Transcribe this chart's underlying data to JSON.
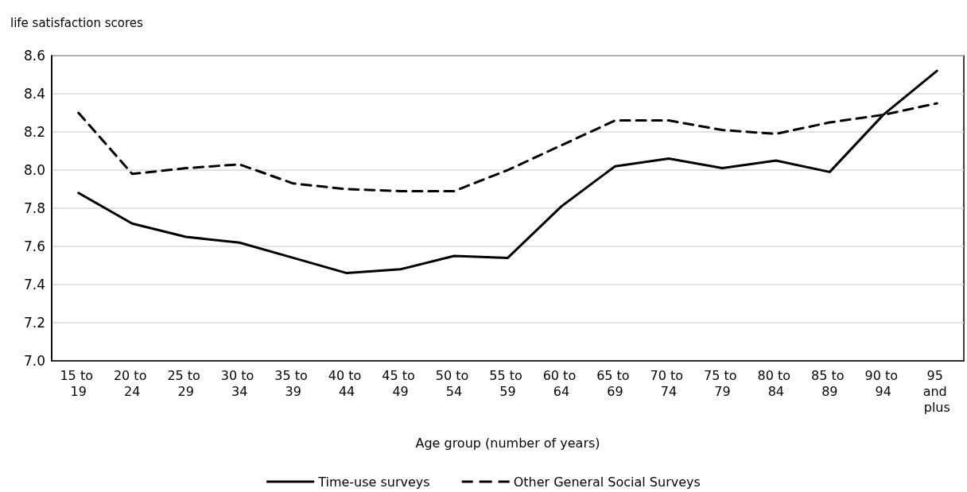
{
  "chart_data": {
    "type": "line",
    "ylabel": "life satisfaction scores",
    "xlabel": "Age group (number of years)",
    "categories": [
      "15 to 19",
      "20 to 24",
      "25 to 29",
      "30 to 34",
      "35 to 39",
      "40 to 44",
      "45 to 49",
      "50 to 54",
      "55 to 59",
      "60 to 64",
      "65 to 69",
      "70 to 74",
      "75 to 79",
      "80 to 84",
      "85 to 89",
      "90 to 94",
      "95 and plus"
    ],
    "series": [
      {
        "name": "Time-use surveys",
        "color": "#000000",
        "line_style": "solid",
        "values": [
          7.88,
          7.72,
          7.65,
          7.62,
          7.54,
          7.46,
          7.48,
          7.55,
          7.54,
          7.81,
          8.02,
          8.06,
          8.01,
          8.05,
          7.99,
          8.29,
          8.52
        ]
      },
      {
        "name": "Other General Social Surveys",
        "color": "#000000",
        "line_style": "dashed",
        "values": [
          8.3,
          7.98,
          8.01,
          8.03,
          7.93,
          7.9,
          7.89,
          7.89,
          8.0,
          8.13,
          8.26,
          8.26,
          8.21,
          8.19,
          8.25,
          8.29,
          8.35
        ]
      }
    ],
    "ylim": [
      7.0,
      8.6
    ],
    "yticks": [
      {
        "value": 7,
        "label": "7.0"
      },
      7.2,
      7.4,
      7.6,
      7.8,
      {
        "value": 8,
        "label": "8.0"
      },
      8.2,
      8.4,
      8.6
    ],
    "grid": "y",
    "legend": "bottom",
    "marker": "none"
  }
}
